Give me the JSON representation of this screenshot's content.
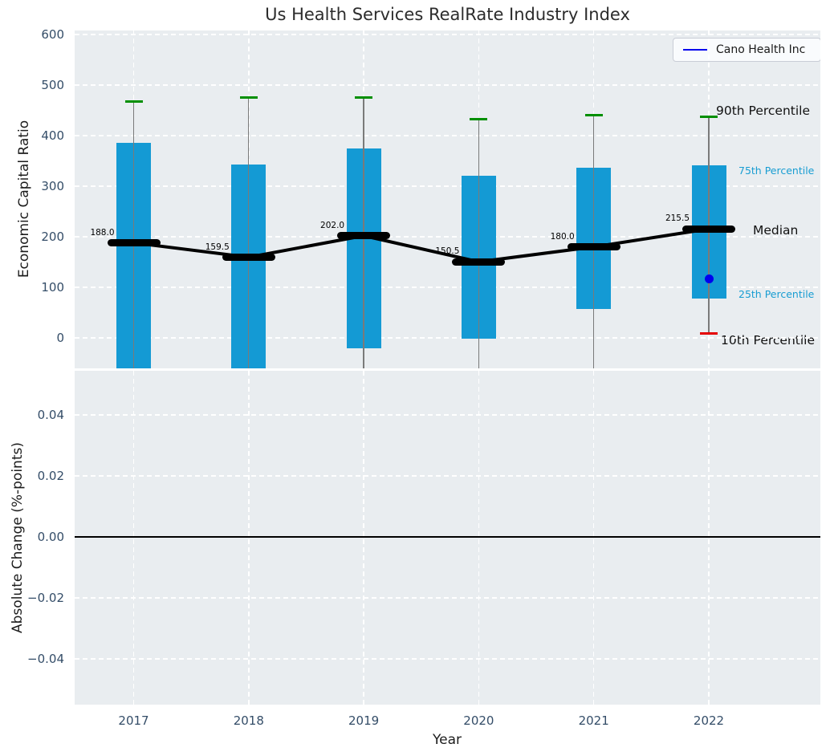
{
  "title": "Us Health Services RealRate Industry Index",
  "legend": {
    "label": "Cano Health Inc"
  },
  "annotations": {
    "p90": "90th Percentile",
    "p75": "75th Percentile",
    "median": "Median",
    "p25": "25th Percentile",
    "p10": "10th Percentile"
  },
  "axes": {
    "top": {
      "ylabel": "Economic Capital Ratio",
      "yticks": [
        "600",
        "500",
        "400",
        "300",
        "200",
        "100",
        "0"
      ]
    },
    "bottom": {
      "ylabel": "Absolute Change (%-points)",
      "yticks": [
        "0.04",
        "0.02",
        "0.00",
        "−0.02",
        "−0.04"
      ]
    },
    "x": {
      "label": "Year",
      "ticks": [
        "2017",
        "2018",
        "2019",
        "2020",
        "2021",
        "2022"
      ]
    }
  },
  "colors": {
    "bar": "#149ad4",
    "median_line": "#000000",
    "p90_cap": "#008f00",
    "p10_cap": "#e50000",
    "company_point": "#0000ee",
    "whisker": "#7a7a7a",
    "plot_bg": "#e9edf0",
    "grid": "#ffffff",
    "tick_text": "#344d68",
    "annotation_blue": "#189dd2"
  },
  "chart_data": {
    "type": "boxplot",
    "title": "Us Health Services RealRate Industry Index",
    "xlabel": "Year",
    "categories": [
      "2017",
      "2018",
      "2019",
      "2020",
      "2021",
      "2022"
    ],
    "legend": [
      "Cano Health Inc"
    ],
    "grid": true,
    "top_panel": {
      "ylabel": "Economic Capital Ratio",
      "ylim": [
        -60,
        610
      ],
      "yticks": [
        0,
        100,
        200,
        300,
        400,
        500,
        600
      ],
      "series": [
        {
          "name": "90th Percentile",
          "values": [
            467,
            475,
            475,
            432,
            441,
            437
          ]
        },
        {
          "name": "75th Percentile",
          "values": [
            385,
            343,
            374,
            320,
            336,
            341
          ]
        },
        {
          "name": "Median",
          "values": [
            188.0,
            159.5,
            202.0,
            150.5,
            180.0,
            215.5
          ]
        },
        {
          "name": "25th Percentile",
          "values": [
            null,
            null,
            -20,
            -2,
            57,
            78
          ]
        },
        {
          "name": "10th Percentile",
          "values": [
            null,
            null,
            null,
            null,
            null,
            8
          ]
        }
      ],
      "median_labels": [
        "188.0",
        "159.5",
        "202.0",
        "150.5",
        "180.0",
        "215.5"
      ],
      "company_point": {
        "name": "Cano Health Inc",
        "category": "2022",
        "value": 117
      },
      "note_on_nulls": "null = percentile lies below the visible axis range (bar/whisker clipped at plot bottom)"
    },
    "bottom_panel": {
      "ylabel": "Absolute Change (%-points)",
      "ylim": [
        -0.055,
        0.054
      ],
      "yticks": [
        0.04,
        0.02,
        0.0,
        -0.02,
        -0.04
      ],
      "zero_line": 0.0,
      "series": []
    }
  }
}
